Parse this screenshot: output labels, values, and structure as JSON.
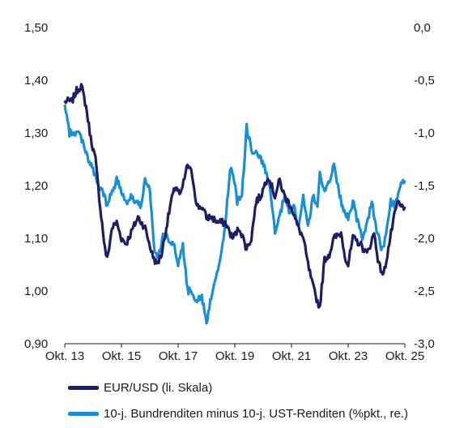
{
  "chart_data": {
    "type": "line",
    "title": "",
    "x_ticks": [
      "Okt. 13",
      "Okt. 15",
      "Okt. 17",
      "Okt. 19",
      "Okt. 21",
      "Okt. 23",
      "Okt. 25"
    ],
    "x_range": [
      "2013-10",
      "2025-10"
    ],
    "y_left": {
      "ticks": [
        "1,50",
        "1,40",
        "1,30",
        "1,20",
        "1,10",
        "1,00",
        "0,90"
      ],
      "range": [
        0.9,
        1.5
      ]
    },
    "y_right": {
      "ticks": [
        "0,0",
        "-0,5",
        "-1,0",
        "-1,5",
        "-2,0",
        "-2,5",
        "-3,0"
      ],
      "range": [
        -3.0,
        0.0
      ]
    },
    "grid": false,
    "legend_position": "bottom-left",
    "series": [
      {
        "name": "EUR/USD (li. Skala)",
        "axis": "left",
        "color": "#1b1f63",
        "points": [
          [
            "2013-10",
            1.36
          ],
          [
            "2014-01",
            1.36
          ],
          [
            "2014-03",
            1.38
          ],
          [
            "2014-05",
            1.39
          ],
          [
            "2014-07",
            1.35
          ],
          [
            "2014-09",
            1.29
          ],
          [
            "2014-11",
            1.25
          ],
          [
            "2015-01",
            1.16
          ],
          [
            "2015-03",
            1.08
          ],
          [
            "2015-04",
            1.06
          ],
          [
            "2015-06",
            1.12
          ],
          [
            "2015-08",
            1.13
          ],
          [
            "2015-10",
            1.1
          ],
          [
            "2015-12",
            1.09
          ],
          [
            "2016-03",
            1.12
          ],
          [
            "2016-05",
            1.14
          ],
          [
            "2016-08",
            1.12
          ],
          [
            "2016-11",
            1.07
          ],
          [
            "2017-01",
            1.05
          ],
          [
            "2017-03",
            1.07
          ],
          [
            "2017-05",
            1.12
          ],
          [
            "2017-07",
            1.17
          ],
          [
            "2017-09",
            1.2
          ],
          [
            "2017-11",
            1.18
          ],
          [
            "2018-02",
            1.24
          ],
          [
            "2018-04",
            1.22
          ],
          [
            "2018-06",
            1.16
          ],
          [
            "2018-08",
            1.16
          ],
          [
            "2018-10",
            1.14
          ],
          [
            "2018-12",
            1.14
          ],
          [
            "2019-03",
            1.13
          ],
          [
            "2019-06",
            1.13
          ],
          [
            "2019-09",
            1.1
          ],
          [
            "2019-12",
            1.12
          ],
          [
            "2020-03",
            1.08
          ],
          [
            "2020-05",
            1.1
          ],
          [
            "2020-07",
            1.17
          ],
          [
            "2020-09",
            1.18
          ],
          [
            "2020-12",
            1.22
          ],
          [
            "2021-03",
            1.18
          ],
          [
            "2021-05",
            1.21
          ],
          [
            "2021-07",
            1.18
          ],
          [
            "2021-10",
            1.16
          ],
          [
            "2021-12",
            1.13
          ],
          [
            "2022-03",
            1.1
          ],
          [
            "2022-05",
            1.05
          ],
          [
            "2022-07",
            1.01
          ],
          [
            "2022-09",
            0.98
          ],
          [
            "2022-10",
            0.97
          ],
          [
            "2022-12",
            1.06
          ],
          [
            "2023-02",
            1.07
          ],
          [
            "2023-04",
            1.1
          ],
          [
            "2023-07",
            1.11
          ],
          [
            "2023-09",
            1.06
          ],
          [
            "2023-10",
            1.05
          ],
          [
            "2023-12",
            1.1
          ],
          [
            "2024-03",
            1.09
          ],
          [
            "2024-06",
            1.07
          ],
          [
            "2024-09",
            1.11
          ],
          [
            "2024-11",
            1.05
          ],
          [
            "2025-01",
            1.03
          ],
          [
            "2025-03",
            1.08
          ],
          [
            "2025-05",
            1.13
          ],
          [
            "2025-07",
            1.17
          ],
          [
            "2025-08",
            1.16
          ],
          [
            "2025-10",
            1.16
          ]
        ]
      },
      {
        "name": "10-j. Bundrenditen minus 10-j. UST-Renditen (%pkt., re.)",
        "axis": "right",
        "color": "#1b8fd6",
        "points": [
          [
            "2013-10",
            -0.75
          ],
          [
            "2013-12",
            -1.0
          ],
          [
            "2014-02",
            -1.0
          ],
          [
            "2014-04",
            -1.0
          ],
          [
            "2014-06",
            -1.1
          ],
          [
            "2014-08",
            -1.25
          ],
          [
            "2014-10",
            -1.35
          ],
          [
            "2014-12",
            -1.5
          ],
          [
            "2015-02",
            -1.55
          ],
          [
            "2015-04",
            -1.7
          ],
          [
            "2015-06",
            -1.55
          ],
          [
            "2015-08",
            -1.45
          ],
          [
            "2015-10",
            -1.55
          ],
          [
            "2015-12",
            -1.65
          ],
          [
            "2016-02",
            -1.6
          ],
          [
            "2016-04",
            -1.65
          ],
          [
            "2016-06",
            -1.7
          ],
          [
            "2016-08",
            -1.45
          ],
          [
            "2016-10",
            -1.55
          ],
          [
            "2016-12",
            -2.15
          ],
          [
            "2017-02",
            -2.15
          ],
          [
            "2017-04",
            -1.95
          ],
          [
            "2017-06",
            -2.0
          ],
          [
            "2017-08",
            -2.05
          ],
          [
            "2017-10",
            -2.25
          ],
          [
            "2017-12",
            -2.05
          ],
          [
            "2018-02",
            -2.5
          ],
          [
            "2018-04",
            -2.5
          ],
          [
            "2018-06",
            -2.6
          ],
          [
            "2018-08",
            -2.55
          ],
          [
            "2018-10",
            -2.8
          ],
          [
            "2018-12",
            -2.55
          ],
          [
            "2019-02",
            -2.35
          ],
          [
            "2019-04",
            -2.2
          ],
          [
            "2019-06",
            -1.85
          ],
          [
            "2019-08",
            -1.35
          ],
          [
            "2019-09",
            -1.35
          ],
          [
            "2019-11",
            -1.65
          ],
          [
            "2020-01",
            -1.6
          ],
          [
            "2020-03",
            -0.95
          ],
          [
            "2020-05",
            -1.15
          ],
          [
            "2020-07",
            -1.2
          ],
          [
            "2020-09",
            -1.25
          ],
          [
            "2020-11",
            -1.35
          ],
          [
            "2021-01",
            -1.55
          ],
          [
            "2021-03",
            -1.95
          ],
          [
            "2021-05",
            -1.8
          ],
          [
            "2021-07",
            -1.6
          ],
          [
            "2021-09",
            -1.75
          ],
          [
            "2021-11",
            -1.7
          ],
          [
            "2022-01",
            -1.9
          ],
          [
            "2022-03",
            -1.6
          ],
          [
            "2022-05",
            -1.9
          ],
          [
            "2022-07",
            -1.6
          ],
          [
            "2022-09",
            -1.7
          ],
          [
            "2022-10",
            -1.4
          ],
          [
            "2022-12",
            -1.55
          ],
          [
            "2023-02",
            -1.45
          ],
          [
            "2023-04",
            -1.3
          ],
          [
            "2023-06",
            -1.55
          ],
          [
            "2023-08",
            -1.75
          ],
          [
            "2023-10",
            -1.8
          ],
          [
            "2023-12",
            -1.65
          ],
          [
            "2024-02",
            -1.85
          ],
          [
            "2024-04",
            -2.0
          ],
          [
            "2024-06",
            -1.85
          ],
          [
            "2024-08",
            -1.65
          ],
          [
            "2024-10",
            -1.9
          ],
          [
            "2024-12",
            -2.1
          ],
          [
            "2025-02",
            -2.0
          ],
          [
            "2025-04",
            -1.65
          ],
          [
            "2025-06",
            -1.7
          ],
          [
            "2025-08",
            -1.5
          ],
          [
            "2025-10",
            -1.45
          ]
        ]
      }
    ]
  }
}
